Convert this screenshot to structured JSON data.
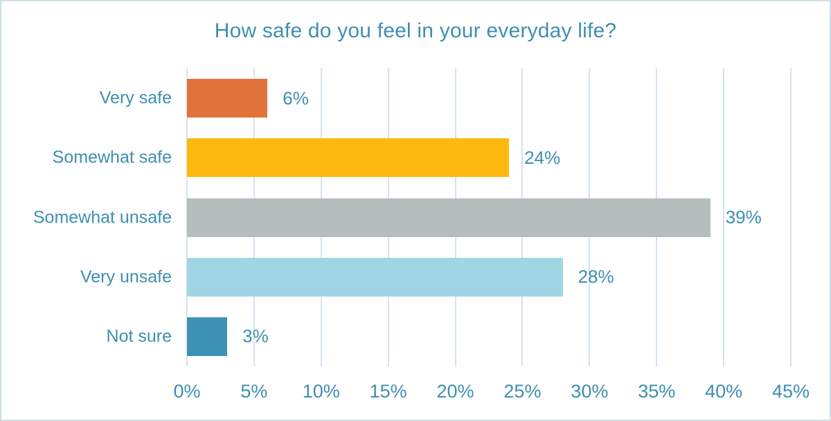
{
  "chart_data": {
    "type": "bar",
    "orientation": "horizontal",
    "title": "How safe do you feel in your everyday life?",
    "categories": [
      "Very safe",
      "Somewhat safe",
      "Somewhat unsafe",
      "Very unsafe",
      "Not sure"
    ],
    "values": [
      6,
      24,
      39,
      28,
      3
    ],
    "value_labels": [
      "6%",
      "24%",
      "39%",
      "28%",
      "3%"
    ],
    "bar_colors": [
      "#e2733a",
      "#fdb90f",
      "#b6bdbc",
      "#a0d6e4",
      "#3e92b3"
    ],
    "xlabel": "",
    "ylabel": "",
    "xlim": [
      0,
      45
    ],
    "x_tick_values": [
      0,
      5,
      10,
      15,
      20,
      25,
      30,
      35,
      40,
      45
    ],
    "x_tick_labels": [
      "0%",
      "5%",
      "10%",
      "15%",
      "20%",
      "25%",
      "30%",
      "35%",
      "40%",
      "45%"
    ],
    "grid": "vertical-on",
    "legend": "none",
    "colors": {
      "text": "#3e8fb0",
      "gridline": "#d5e3ec",
      "frame_border": "#cedfe5",
      "background": "#ffffff"
    }
  }
}
